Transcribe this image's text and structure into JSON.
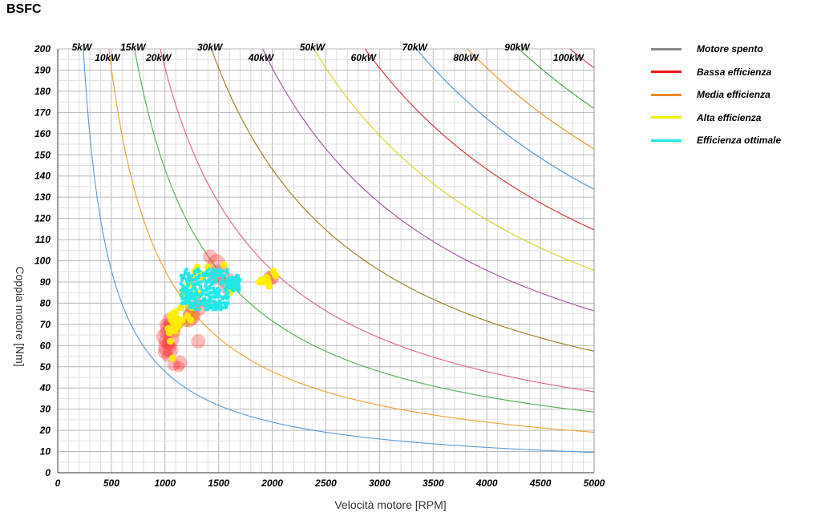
{
  "chart_data": {
    "type": "scatter",
    "title": "BSFC",
    "xlabel": "Velocità motore [RPM]",
    "ylabel": "Coppia motore [Nm]",
    "xlim": [
      0,
      5000
    ],
    "ylim": [
      0,
      200
    ],
    "x_ticks": [
      0,
      500,
      1000,
      1500,
      2000,
      2500,
      3000,
      3500,
      4000,
      4500,
      5000
    ],
    "y_ticks": [
      0,
      10,
      20,
      30,
      40,
      50,
      60,
      70,
      80,
      90,
      100,
      110,
      120,
      130,
      140,
      150,
      160,
      170,
      180,
      190,
      200
    ],
    "grid": true,
    "power_curves": [
      {
        "label": "5kW",
        "kw": 5,
        "color": "#5b9bd5"
      },
      {
        "label": "10kW",
        "kw": 10,
        "color": "#f0a030"
      },
      {
        "label": "15kW",
        "kw": 15,
        "color": "#4caf50"
      },
      {
        "label": "20kW",
        "kw": 20,
        "color": "#e06090"
      },
      {
        "label": "30kW",
        "kw": 30,
        "color": "#9a7a1a"
      },
      {
        "label": "40kW",
        "kw": 40,
        "color": "#a050a0"
      },
      {
        "label": "50kW",
        "kw": 50,
        "color": "#e0d020"
      },
      {
        "label": "60kW",
        "kw": 60,
        "color": "#d03030"
      },
      {
        "label": "70kW",
        "kw": 70,
        "color": "#4a90d0"
      },
      {
        "label": "80kW",
        "kw": 80,
        "color": "#f09020"
      },
      {
        "label": "90kW",
        "kw": 90,
        "color": "#40a040"
      },
      {
        "label": "100kW",
        "kw": 100,
        "color": "#d04070"
      }
    ],
    "series": [
      {
        "name": "Bassa efficienza",
        "color": "#ff3b3b",
        "points": [
          [
            1000,
            57
          ],
          [
            1020,
            59
          ],
          [
            1010,
            62
          ],
          [
            1030,
            61
          ],
          [
            1000,
            64
          ],
          [
            1040,
            60
          ],
          [
            1010,
            66
          ],
          [
            1030,
            68
          ],
          [
            1050,
            58
          ],
          [
            1020,
            55
          ],
          [
            1060,
            63
          ],
          [
            1000,
            70
          ],
          [
            1080,
            51
          ],
          [
            1140,
            52
          ],
          [
            1130,
            50
          ],
          [
            1310,
            62
          ],
          [
            1420,
            102
          ],
          [
            1480,
            99
          ],
          [
            1550,
            90
          ],
          [
            1580,
            88
          ],
          [
            1300,
            80
          ],
          [
            1250,
            74
          ],
          [
            1230,
            72
          ],
          [
            1220,
            75
          ],
          [
            1600,
            91
          ],
          [
            1490,
            94
          ],
          [
            1470,
            92
          ],
          [
            1980,
            92
          ],
          [
            2000,
            92
          ],
          [
            1320,
            78
          ],
          [
            1050,
            71
          ],
          [
            1070,
            69
          ],
          [
            1040,
            72
          ]
        ]
      },
      {
        "name": "Media efficienza",
        "color": "#f0892a",
        "points": [
          [
            1100,
            66
          ],
          [
            1130,
            70
          ],
          [
            1250,
            76
          ],
          [
            1280,
            74
          ],
          [
            1200,
            71
          ],
          [
            1990,
            93
          ],
          [
            1230,
            78
          ]
        ]
      },
      {
        "name": "Alta efficienza",
        "color": "#ffee00",
        "points": [
          [
            1030,
            68
          ],
          [
            1050,
            74
          ],
          [
            1060,
            72
          ],
          [
            1080,
            70
          ],
          [
            1100,
            76
          ],
          [
            1110,
            73
          ],
          [
            1090,
            67
          ],
          [
            1120,
            69
          ],
          [
            1070,
            75
          ],
          [
            1040,
            66
          ],
          [
            1150,
            78
          ],
          [
            1160,
            72
          ],
          [
            1130,
            71
          ],
          [
            1050,
            62
          ],
          [
            1070,
            54
          ],
          [
            1200,
            83
          ],
          [
            1180,
            86
          ],
          [
            1160,
            84
          ],
          [
            1220,
            80
          ],
          [
            1230,
            89
          ],
          [
            1260,
            92
          ],
          [
            1280,
            95
          ],
          [
            1300,
            97
          ],
          [
            1330,
            94
          ],
          [
            1350,
            92
          ],
          [
            1550,
            98
          ],
          [
            1580,
            88
          ],
          [
            1600,
            85
          ],
          [
            1900,
            91
          ],
          [
            1920,
            90
          ],
          [
            1950,
            92
          ],
          [
            2010,
            95
          ],
          [
            2030,
            93
          ],
          [
            1880,
            90
          ],
          [
            1970,
            88
          ],
          [
            1960,
            90
          ],
          [
            1210,
            74
          ],
          [
            1240,
            72
          ],
          [
            1250,
            78
          ],
          [
            1280,
            86
          ],
          [
            1320,
            84
          ],
          [
            1400,
            97
          ]
        ]
      },
      {
        "name": "Efficienza ottimale",
        "color": "#22e8e8",
        "points": []
      },
      {
        "name": "Motore spento",
        "color": "#888888",
        "points": []
      }
    ]
  },
  "legend": [
    {
      "label": "Motore spento",
      "color": "#888888"
    },
    {
      "label": "Bassa efficienza",
      "color": "#e81818"
    },
    {
      "label": "Media efficienza",
      "color": "#f08a2a"
    },
    {
      "label": "Alta efficienza",
      "color": "#f0f000"
    },
    {
      "label": "Efficienza ottimale",
      "color": "#22e8e8"
    }
  ],
  "optimal_cluster": {
    "rpm_min": 1150,
    "rpm_max": 1700,
    "nm_min": 77,
    "nm_max": 96,
    "count": 360
  }
}
